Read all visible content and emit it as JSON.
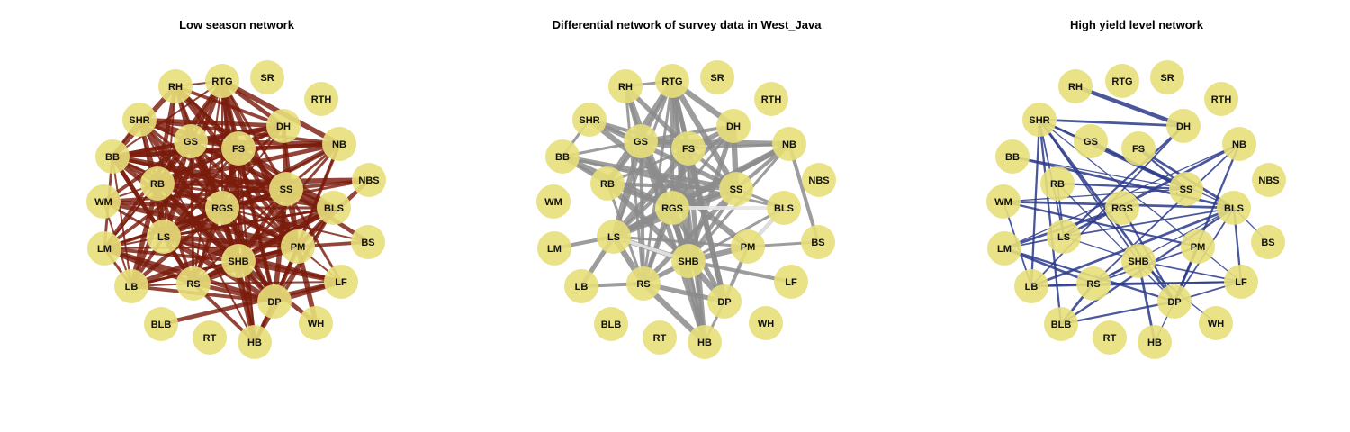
{
  "colors": {
    "node_fill": "#e8df7a",
    "low_edge": "#7a1c0c",
    "diff_edge": "#8c8c8c",
    "diff_edge_light": "#e6e6e6",
    "high_edge": "#2b3a8a"
  },
  "panels": [
    {
      "id": "low",
      "title": "Low season network"
    },
    {
      "id": "diff",
      "title": "Differential network of survey data in West_Java"
    },
    {
      "id": "high",
      "title": "High yield level network"
    }
  ],
  "nodes": [
    "RH",
    "RTG",
    "SR",
    "RTH",
    "SHR",
    "DH",
    "GS",
    "FS",
    "NB",
    "BB",
    "NBS",
    "RB",
    "SS",
    "WM",
    "RGS",
    "BLS",
    "LS",
    "LM",
    "PM",
    "BS",
    "SHB",
    "LB",
    "RS",
    "LF",
    "DP",
    "BLB",
    "WH",
    "RT",
    "HB"
  ]
}
